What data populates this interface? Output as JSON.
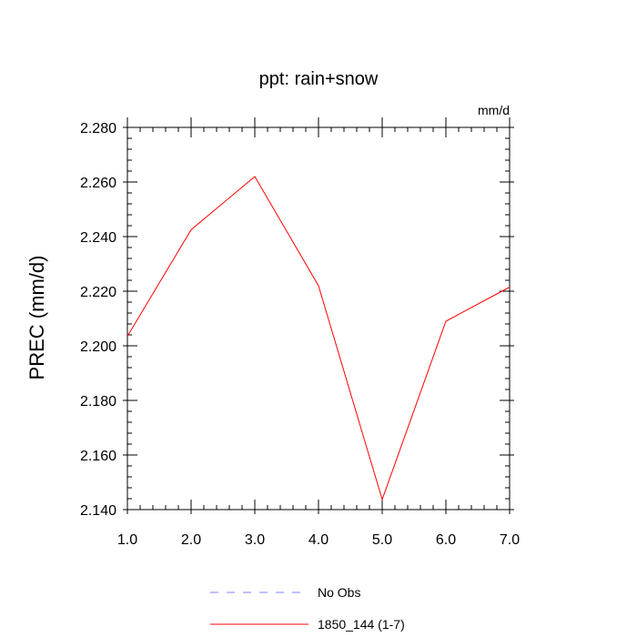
{
  "chart_data": {
    "type": "line",
    "title": "ppt: rain+snow",
    "units_label": "mm/d",
    "ylabel": "PREC  (mm/d)",
    "xlabel": "",
    "xlim": [
      1.0,
      7.0
    ],
    "ylim": [
      2.14,
      2.28
    ],
    "x_ticks": [
      "1.0",
      "2.0",
      "3.0",
      "4.0",
      "5.0",
      "6.0",
      "7.0"
    ],
    "y_ticks": [
      "2.140",
      "2.160",
      "2.180",
      "2.200",
      "2.220",
      "2.240",
      "2.260",
      "2.280"
    ],
    "x": [
      1,
      2,
      3,
      4,
      5,
      6,
      7
    ],
    "series": [
      {
        "name": "1850_144 (1-7)",
        "color": "#ff0000",
        "style": "solid",
        "values": [
          2.2035,
          2.2425,
          2.262,
          2.222,
          2.1437,
          2.209,
          2.2215
        ]
      }
    ],
    "legend": [
      {
        "label": "No Obs",
        "color": "#8080ff",
        "style": "dashed"
      },
      {
        "label": "1850_144 (1-7)",
        "color": "#ff0000",
        "style": "solid"
      }
    ],
    "legend_position": "bottom",
    "grid": false
  }
}
